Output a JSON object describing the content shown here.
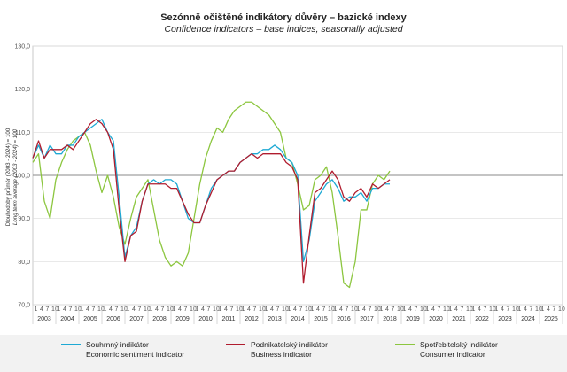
{
  "title": "Sezónně očištěné indikátory důvěry – bazické indexy",
  "subtitle": "Confidence indicators – base indices, seasonally adjusted",
  "chart_data": {
    "type": "line",
    "title": "Sezónně očištěné indikátory důvěry – bazické indexy",
    "subtitle": "Confidence indicators – base indices, seasonally adjusted",
    "ylabel": "Dlouhodobý průměr (2003 - 2024) = 100",
    "ylabel2": "Long term average (2003 - 2024) = 100",
    "ylim": [
      70,
      130
    ],
    "yticks": [
      "70,0",
      "80,0",
      "90,0",
      "100,0",
      "110,0",
      "120,0",
      "130,0"
    ],
    "month_ticks": [
      "1",
      "4",
      "7",
      "10"
    ],
    "years": [
      "2003",
      "2004",
      "2005",
      "2006",
      "2007",
      "2008",
      "2009",
      "2010",
      "2011",
      "2012",
      "2013",
      "2014",
      "2015",
      "2016",
      "2017",
      "2018",
      "2019",
      "2020",
      "2021",
      "2022",
      "2023",
      "2024",
      "2025"
    ],
    "x_start": 2003.0,
    "x_step": 0.25,
    "grid": true,
    "reference_line": 100,
    "legend_position": "bottom",
    "series": [
      {
        "name": "Souhrnný indikátor",
        "name_en": "Economic sentiment indicator",
        "color": "#1ea9d4",
        "values": [
          104,
          107,
          104,
          107,
          105,
          105,
          107,
          107,
          109,
          110,
          111,
          112,
          113,
          110,
          108,
          95,
          81,
          86,
          88,
          94,
          98,
          99,
          98,
          99,
          99,
          98,
          94,
          90,
          89,
          89,
          93,
          97,
          99,
          100,
          101,
          101,
          103,
          104,
          105,
          105,
          106,
          106,
          107,
          106,
          104,
          103,
          100,
          80,
          85,
          94,
          96,
          98,
          99,
          97,
          94,
          95,
          95,
          96,
          94,
          97,
          97,
          98,
          98
        ]
      },
      {
        "name": "Podnikatelský indikátor",
        "name_en": "Business indicator",
        "color": "#b01c2e",
        "values": [
          104,
          108,
          104,
          106,
          106,
          106,
          107,
          106,
          108,
          110,
          112,
          113,
          112,
          110,
          106,
          92,
          80,
          86,
          87,
          94,
          98,
          98,
          98,
          98,
          97,
          97,
          94,
          91,
          89,
          89,
          93,
          96,
          99,
          100,
          101,
          101,
          103,
          104,
          105,
          104,
          105,
          105,
          105,
          105,
          103,
          102,
          99,
          75,
          86,
          96,
          97,
          99,
          101,
          99,
          95,
          94,
          96,
          97,
          95,
          98,
          97,
          98,
          99
        ]
      },
      {
        "name": "Spotřebitelský indikátor",
        "name_en": "Consumer indicator",
        "color": "#8cc63f",
        "values": [
          103,
          105,
          94,
          90,
          99,
          103,
          106,
          108,
          109,
          110,
          107,
          101,
          96,
          100,
          95,
          88,
          84,
          90,
          95,
          97,
          99,
          92,
          85,
          81,
          79,
          80,
          79,
          82,
          90,
          98,
          104,
          108,
          111,
          110,
          113,
          115,
          116,
          117,
          117,
          116,
          115,
          114,
          112,
          110,
          104,
          103,
          98,
          92,
          93,
          99,
          100,
          102,
          96,
          86,
          75,
          74,
          80,
          92,
          92,
          98,
          100,
          99,
          101
        ]
      }
    ]
  }
}
